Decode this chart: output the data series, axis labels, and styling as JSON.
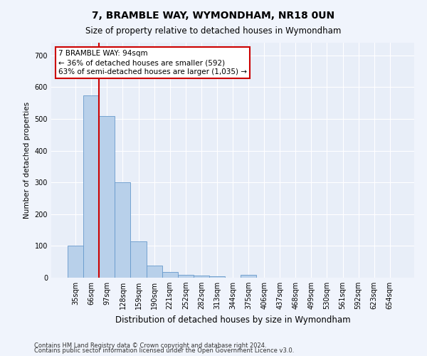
{
  "title": "7, BRAMBLE WAY, WYMONDHAM, NR18 0UN",
  "subtitle": "Size of property relative to detached houses in Wymondham",
  "xlabel": "Distribution of detached houses by size in Wymondham",
  "ylabel": "Number of detached properties",
  "footer_line1": "Contains HM Land Registry data © Crown copyright and database right 2024.",
  "footer_line2": "Contains public sector information licensed under the Open Government Licence v3.0.",
  "categories": [
    "35sqm",
    "66sqm",
    "97sqm",
    "128sqm",
    "159sqm",
    "190sqm",
    "221sqm",
    "252sqm",
    "282sqm",
    "313sqm",
    "344sqm",
    "375sqm",
    "406sqm",
    "437sqm",
    "468sqm",
    "499sqm",
    "530sqm",
    "561sqm",
    "592sqm",
    "623sqm",
    "654sqm"
  ],
  "bar_heights": [
    100,
    575,
    510,
    300,
    115,
    38,
    17,
    10,
    6,
    5,
    0,
    8,
    0,
    0,
    0,
    0,
    0,
    0,
    0,
    0,
    0
  ],
  "bar_color": "#b8d0ea",
  "bar_edge_color": "#6699cc",
  "fig_background_color": "#f0f4fc",
  "plot_background_color": "#e8eef8",
  "grid_color": "#ffffff",
  "annotation_box_text_line1": "7 BRAMBLE WAY: 94sqm",
  "annotation_box_text_line2": "← 36% of detached houses are smaller (592)",
  "annotation_box_text_line3": "63% of semi-detached houses are larger (1,035) →",
  "annotation_box_color": "#ffffff",
  "annotation_box_edge_color": "#cc0000",
  "red_line_x": 1.47,
  "red_line_color": "#cc0000",
  "ylim": [
    0,
    740
  ],
  "yticks": [
    0,
    100,
    200,
    300,
    400,
    500,
    600,
    700
  ]
}
